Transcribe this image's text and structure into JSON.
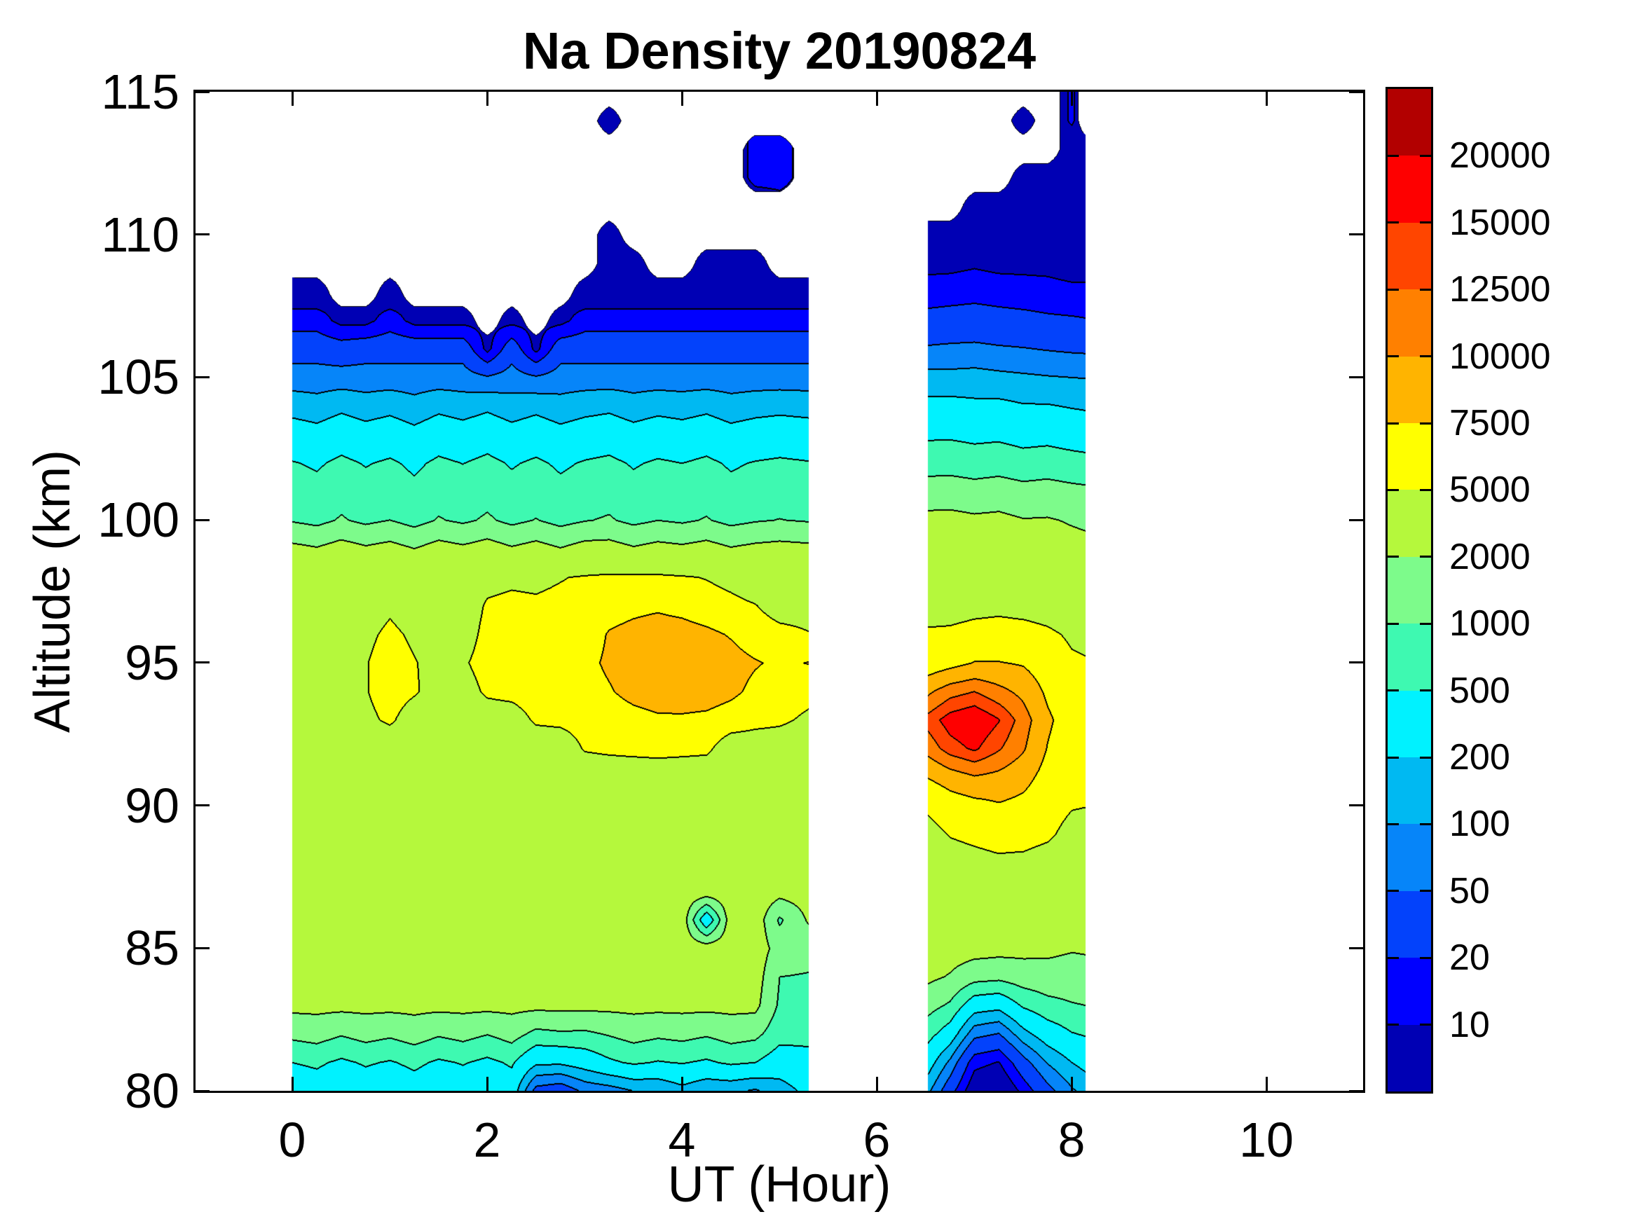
{
  "title": "Na Density 20190824",
  "chart_data": {
    "type": "filled_contour",
    "title": "Na Density 20190824",
    "xlabel": "UT (Hour)",
    "ylabel": "Altitude (km)",
    "xlim": [
      -1,
      11
    ],
    "ylim": [
      80,
      115
    ],
    "x_ticks": [
      0,
      2,
      4,
      6,
      8,
      10
    ],
    "y_ticks": [
      80,
      85,
      90,
      95,
      100,
      105,
      110,
      115
    ],
    "grid": false,
    "legend_position": "colorbar-right",
    "levels": [
      10,
      20,
      50,
      100,
      200,
      500,
      1000,
      2000,
      5000,
      7500,
      10000,
      12500,
      15000,
      20000
    ],
    "colorbar_labels": [
      "20000",
      "15000",
      "12500",
      "10000",
      "7500",
      "5000",
      "2000",
      "1000",
      "500",
      "200",
      "100",
      "50",
      "20",
      "10"
    ],
    "band_colors": [
      "#0000B4",
      "#0000FF",
      "#0342FB",
      "#0685F9",
      "#00B9F2",
      "#00F2FF",
      "#3EF9B1",
      "#7DFB8B",
      "#B5F83C",
      "#FFFF00",
      "#FFB400",
      "#FF8000",
      "#FF4500",
      "#FE0000",
      "#B20000"
    ],
    "altitude_min": 80,
    "altitude_max": 115,
    "altitude_step": 1,
    "blocks": [
      {
        "hours": [
          0,
          0.25,
          0.5,
          0.75,
          1,
          1.25,
          1.5,
          1.75,
          2,
          2.25,
          2.5,
          2.75,
          3,
          3.25,
          3.5,
          3.75,
          4,
          4.25,
          4.5,
          4.75,
          5,
          5.3
        ],
        "wiggle": [
          1.0,
          0.88,
          1.12,
          0.92,
          1.06,
          0.84,
          1.1,
          0.95,
          1.15,
          0.9,
          1.08,
          0.86,
          1.02,
          1.12,
          0.9,
          1.05,
          0.96,
          1.1,
          0.88,
          1.0,
          1.07,
          1.0
        ],
        "base": [
          300,
          500,
          1200,
          2400,
          2800,
          3000,
          3100,
          3200,
          3300,
          3400,
          3500,
          3600,
          3800,
          4100,
          4300,
          4400,
          4300,
          4100,
          3800,
          2400,
          950,
          700,
          520,
          300,
          150,
          70,
          35,
          14,
          6
        ],
        "columns": [
          {
            "top": 108,
            "d": {}
          },
          {
            "top": 108,
            "d": {}
          },
          {
            "top": 107,
            "d": {
              "106": 30,
              "107": 8
            }
          },
          {
            "top": 107,
            "d": {
              "93": 4600,
              "94": 4900,
              "95": 4900,
              "96": 4600,
              "107": 8
            }
          },
          {
            "top": 108,
            "d": {
              "93": 5300,
              "94": 5900,
              "95": 5900,
              "96": 5400,
              "97": 4700
            }
          },
          {
            "top": 107,
            "d": {
              "94": 5200,
              "95": 5100,
              "96": 4700,
              "107": 8
            }
          },
          {
            "top": 107,
            "d": {
              "107": 8
            }
          },
          {
            "top": 107,
            "d": {
              "95": 4800,
              "107": 8
            }
          },
          {
            "top": 106,
            "d": {
              "94": 5300,
              "95": 5700,
              "96": 5500,
              "97": 5200,
              "98": 4500,
              "105": 55,
              "106": 8
            }
          },
          {
            "top": 107,
            "d": {
              "94": 5600,
              "95": 6100,
              "96": 5900,
              "97": 5400,
              "98": 4700,
              "107": 8
            }
          },
          {
            "top": 106,
            "d": {
              "80": 40,
              "81": 250,
              "82": 900,
              "93": 5300,
              "94": 6100,
              "95": 6300,
              "96": 5900,
              "97": 5300,
              "98": 4600,
              "105": 55,
              "106": 8
            }
          },
          {
            "top": 107,
            "d": {
              "80": 25,
              "81": 200,
              "82": 800,
              "93": 5500,
              "94": 6300,
              "95": 6500,
              "96": 6100,
              "97": 5500,
              "98": 4900,
              "107": 8
            }
          },
          {
            "top": 108,
            "d": {
              "80": 60,
              "81": 300,
              "82": 900,
              "92": 5200,
              "93": 5900,
              "94": 6600,
              "95": 6900,
              "96": 6300,
              "97": 5700,
              "98": 5200,
              "99": 2600
            }
          },
          {
            "top": 110,
            "d": {
              "80": 80,
              "92": 5500,
              "93": 6300,
              "94": 7300,
              "95": 7900,
              "96": 7700,
              "97": 6500,
              "98": 5400,
              "109": 4,
              "110": 3
            },
            "extra": {
              "114": 8
            }
          },
          {
            "top": 109,
            "d": {
              "80": 90,
              "92": 5700,
              "93": 6700,
              "94": 8300,
              "95": 8900,
              "96": 8300,
              "97": 6900,
              "98": 5500,
              "109": 4
            }
          },
          {
            "top": 108,
            "d": {
              "80": 110,
              "92": 5900,
              "93": 7100,
              "94": 8900,
              "95": 9400,
              "96": 8900,
              "97": 7100,
              "98": 5400
            }
          },
          {
            "top": 108,
            "d": {
              "80": 150,
              "92": 5700,
              "93": 7100,
              "94": 9100,
              "95": 9600,
              "96": 8700,
              "97": 6700,
              "98": 5200
            }
          },
          {
            "top": 109,
            "d": {
              "80": 120,
              "86": 250,
              "92": 5500,
              "93": 6900,
              "94": 8900,
              "95": 9300,
              "96": 8100,
              "97": 6100,
              "98": 4900,
              "109": 4
            }
          },
          {
            "top": 109,
            "d": {
              "80": 100,
              "93": 6300,
              "94": 8100,
              "95": 8500,
              "96": 7300,
              "97": 5600,
              "98": 4400,
              "109": 4
            }
          },
          {
            "top": 109,
            "d": {
              "80": 90,
              "93": 5700,
              "94": 6900,
              "95": 7700,
              "96": 6300,
              "97": 5100,
              "109": 4
            },
            "extra": {
              "112": 15,
              "113": 15
            }
          },
          {
            "top": 108,
            "d": {
              "80": 150,
              "81": 350,
              "82": 700,
              "83": 900,
              "84": 1000,
              "85": 1500,
              "86": 900,
              "87": 2600,
              "93": 5400,
              "94": 6300,
              "95": 7100,
              "96": 5700
            },
            "extra": {
              "112": 15,
              "113": 15
            }
          },
          {
            "top": 108,
            "d": {
              "80": 250,
              "81": 400,
              "82": 600,
              "83": 800,
              "84": 950,
              "85": 1300,
              "86": 2200,
              "87": 2800,
              "88": 3000,
              "89": 3100,
              "90": 3200,
              "91": 3300,
              "92": 3600,
              "93": 4600,
              "94": 5700,
              "95": 7600,
              "96": 5100,
              "97": 4200,
              "98": 3600
            }
          }
        ]
      },
      {
        "hours": [
          6.52,
          6.75,
          7,
          7.25,
          7.5,
          7.75,
          8,
          8.14
        ],
        "wiggle": [
          1,
          1.06,
          0.94,
          1.04,
          0.96,
          1.05,
          1,
          0.98
        ],
        "columns": [
          {
            "vals": [
              120,
              300,
              650,
              1300,
              2300,
              2900,
              3100,
              3400,
              3900,
              4400,
              5300,
              7600,
              11000,
              13500,
              9500,
              6200,
              5300,
              4200,
              3600,
              3000,
              2400,
              1400,
              750,
              450,
              250,
              130,
              55,
              26,
              14,
              8,
              6
            ]
          },
          {
            "vals": [
              30,
              90,
              350,
              900,
              1900,
              2700,
              3200,
              3700,
              4300,
              5100,
              6300,
              8800,
              13800,
              16500,
              11500,
              6800,
              5400,
              4200,
              3500,
              2900,
              2300,
              1350,
              720,
              430,
              240,
              125,
              58,
              27,
              15,
              8,
              6
            ]
          },
          {
            "vals": [
              5,
              12,
              60,
              300,
              1300,
              2600,
              3200,
              3800,
              4500,
              5400,
              6800,
              9800,
              15500,
              18000,
              12500,
              7600,
              5800,
              4400,
              3600,
              3000,
              2400,
              1400,
              750,
              450,
              250,
              130,
              60,
              28,
              16,
              9,
              6,
              5
            ]
          },
          {
            "vals": [
              4,
              10,
              50,
              260,
              1200,
              2500,
              3100,
              3700,
              4700,
              5700,
              7300,
              9300,
              12800,
              15200,
              10800,
              7600,
              6000,
              4500,
              3600,
              2900,
              2250,
              1350,
              720,
              420,
              230,
              120,
              55,
              26,
              15,
              8,
              6,
              5
            ]
          },
          {
            "vals": [
              12,
              35,
              150,
              550,
              1450,
              2400,
              3000,
              3500,
              4500,
              5900,
              6900,
              8300,
              10300,
              11300,
              9300,
              7300,
              5900,
              4300,
              3300,
              2700,
              2150,
              1300,
              700,
              400,
              220,
              112,
              52,
              25,
              14,
              8,
              6,
              5,
              4
            ],
            "extra": {
              "114": 8
            }
          },
          {
            "vals": [
              40,
              110,
              330,
              800,
              1550,
              2300,
              2850,
              3300,
              4100,
              5400,
              6100,
              6700,
              7400,
              7900,
              7100,
              6300,
              5400,
              4100,
              3100,
              2500,
              2000,
              1250,
              680,
              380,
              200,
              105,
              48,
              23,
              13,
              8,
              6,
              5,
              4
            ]
          },
          {
            "vals": [
              90,
              200,
              480,
              950,
              1500,
              2100,
              2650,
              3050,
              3550,
              4300,
              5150,
              5700,
              6100,
              6400,
              5900,
              5300,
              4700,
              3700,
              2950,
              2450,
              1900,
              1200,
              650,
              360,
              190,
              100,
              45,
              22,
              12,
              7,
              5,
              4,
              4,
              4
            ],
            "extra": {
              "114": 12,
              "115": 12
            }
          },
          {
            "vals": [
              120,
              250,
              520,
              1000,
              1550,
              2150,
              2650,
              3050,
              3550,
              4250,
              5050,
              5600,
              6000,
              6250,
              5750,
              5150,
              4550,
              3600,
              2900,
              2400,
              1850,
              1180,
              640,
              350,
              185,
              98,
              44,
              21,
              12,
              7,
              5,
              4,
              4,
              4
            ]
          }
        ]
      }
    ]
  }
}
